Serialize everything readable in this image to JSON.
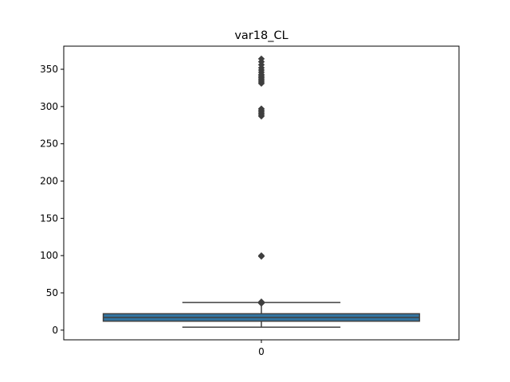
{
  "chart_data": {
    "type": "box",
    "title": "var18_CL",
    "xlabel": "",
    "ylabel": "",
    "categories": [
      "0"
    ],
    "ylim": [
      -13,
      381
    ],
    "yticks": [
      0,
      50,
      100,
      150,
      200,
      250,
      300,
      350
    ],
    "grid": false,
    "boxes": [
      {
        "category": "0",
        "whisker_low": 4,
        "q1": 12,
        "median": 17,
        "q3": 22,
        "whisker_high": 37,
        "outliers": [
          36,
          38,
          100,
          99,
          287,
          289,
          291,
          293,
          295,
          297,
          331,
          333,
          335,
          337,
          339,
          341,
          343,
          346,
          349,
          352,
          356,
          360,
          364
        ]
      }
    ],
    "colors": {
      "box_fill": "#3274a1",
      "line": "#3f3f3f",
      "outlier": "#3f3f3f"
    }
  }
}
